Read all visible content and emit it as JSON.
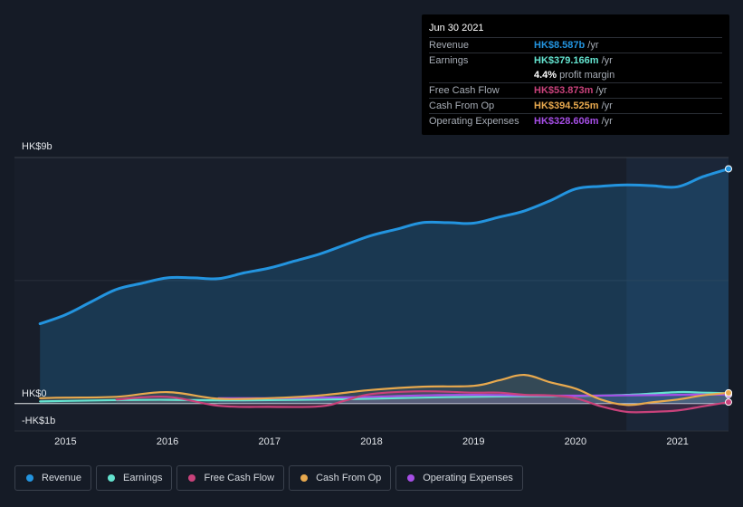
{
  "colors": {
    "revenue": "#2394df",
    "earnings": "#64e3cf",
    "free_cash_flow": "#c9427b",
    "cash_from_op": "#e8a94e",
    "operating_expenses": "#a64ee6"
  },
  "tooltip": {
    "date": "Jun 30 2021",
    "rows": [
      {
        "label": "Revenue",
        "value": "HK$8.587b",
        "unit": "/yr",
        "color": "#2394df"
      },
      {
        "label": "Earnings",
        "value": "HK$379.166m",
        "unit": "/yr",
        "color": "#64e3cf"
      },
      {
        "label": "",
        "value": "4.4%",
        "unit": "profit margin",
        "color": "#ffffff"
      },
      {
        "label": "Free Cash Flow",
        "value": "HK$53.873m",
        "unit": "/yr",
        "color": "#c9427b"
      },
      {
        "label": "Cash From Op",
        "value": "HK$394.525m",
        "unit": "/yr",
        "color": "#e8a94e"
      },
      {
        "label": "Operating Expenses",
        "value": "HK$328.606m",
        "unit": "/yr",
        "color": "#a64ee6"
      }
    ]
  },
  "legend": [
    {
      "label": "Revenue",
      "color": "#2394df"
    },
    {
      "label": "Earnings",
      "color": "#64e3cf"
    },
    {
      "label": "Free Cash Flow",
      "color": "#c9427b"
    },
    {
      "label": "Cash From Op",
      "color": "#e8a94e"
    },
    {
      "label": "Operating Expenses",
      "color": "#a64ee6"
    }
  ],
  "chart_data": {
    "type": "line",
    "title": "",
    "xlabel": "",
    "ylabel": "",
    "y_labels": {
      "top": "HK$9b",
      "zero": "HK$0",
      "bottom": "-HK$1b"
    },
    "ylim": [
      -1.0,
      9.0
    ],
    "xlim": [
      2014.5,
      2021.5
    ],
    "x_ticks": [
      {
        "value": 2015,
        "label": "2015"
      },
      {
        "value": 2016,
        "label": "2016"
      },
      {
        "value": 2017,
        "label": "2017"
      },
      {
        "value": 2018,
        "label": "2018"
      },
      {
        "value": 2019,
        "label": "2019"
      },
      {
        "value": 2020,
        "label": "2020"
      },
      {
        "value": 2021,
        "label": "2021"
      }
    ],
    "highlight_start": 2020.5,
    "series": [
      {
        "name": "Revenue",
        "key": "revenue",
        "area": true,
        "x": [
          2014.75,
          2015.0,
          2015.25,
          2015.5,
          2015.75,
          2016.0,
          2016.25,
          2016.5,
          2016.75,
          2017.0,
          2017.25,
          2017.5,
          2017.75,
          2018.0,
          2018.25,
          2018.5,
          2018.75,
          2019.0,
          2019.25,
          2019.5,
          2019.75,
          2020.0,
          2020.25,
          2020.5,
          2020.75,
          2021.0,
          2021.25,
          2021.5
        ],
        "values": [
          2.92,
          3.25,
          3.72,
          4.18,
          4.4,
          4.6,
          4.6,
          4.57,
          4.78,
          4.96,
          5.22,
          5.48,
          5.82,
          6.15,
          6.38,
          6.62,
          6.62,
          6.6,
          6.82,
          7.05,
          7.42,
          7.85,
          7.95,
          8.0,
          7.97,
          7.93,
          8.3,
          8.587
        ]
      },
      {
        "name": "Earnings",
        "key": "earnings",
        "area": false,
        "x": [
          2014.75,
          2015.0,
          2015.5,
          2016.0,
          2016.5,
          2017.0,
          2017.5,
          2018.0,
          2018.5,
          2019.0,
          2019.5,
          2020.0,
          2020.5,
          2021.0,
          2021.25,
          2021.5
        ],
        "values": [
          0.08,
          0.1,
          0.13,
          0.14,
          0.12,
          0.13,
          0.15,
          0.18,
          0.22,
          0.25,
          0.27,
          0.28,
          0.32,
          0.42,
          0.4,
          0.379
        ]
      },
      {
        "name": "Free Cash Flow",
        "key": "free_cash_flow",
        "area": false,
        "x": [
          2015.5,
          2016.0,
          2016.5,
          2017.0,
          2017.5,
          2017.75,
          2018.0,
          2018.5,
          2019.0,
          2019.25,
          2019.5,
          2019.75,
          2020.0,
          2020.25,
          2020.5,
          2020.75,
          2021.0,
          2021.25,
          2021.5
        ],
        "values": [
          0.15,
          0.25,
          -0.08,
          -0.12,
          -0.1,
          0.12,
          0.35,
          0.45,
          0.4,
          0.4,
          0.32,
          0.3,
          0.2,
          -0.1,
          -0.3,
          -0.3,
          -0.25,
          -0.1,
          0.054
        ]
      },
      {
        "name": "Cash From Op",
        "key": "cash_from_op",
        "area": false,
        "x": [
          2014.75,
          2015.0,
          2015.5,
          2016.0,
          2016.5,
          2017.0,
          2017.5,
          2018.0,
          2018.5,
          2019.0,
          2019.25,
          2019.5,
          2019.75,
          2020.0,
          2020.25,
          2020.5,
          2020.75,
          2021.0,
          2021.25,
          2021.5
        ],
        "values": [
          0.2,
          0.22,
          0.25,
          0.42,
          0.18,
          0.2,
          0.3,
          0.5,
          0.62,
          0.65,
          0.85,
          1.05,
          0.78,
          0.55,
          0.15,
          -0.05,
          0.05,
          0.15,
          0.3,
          0.395
        ]
      },
      {
        "name": "Operating Expenses",
        "key": "operating_expenses",
        "area": false,
        "x": [
          2016.5,
          2017.0,
          2017.5,
          2018.0,
          2018.5,
          2019.0,
          2019.5,
          2020.0,
          2020.5,
          2021.0,
          2021.25,
          2021.5
        ],
        "values": [
          0.2,
          0.2,
          0.22,
          0.25,
          0.3,
          0.32,
          0.3,
          0.29,
          0.3,
          0.32,
          0.33,
          0.329
        ]
      }
    ]
  }
}
